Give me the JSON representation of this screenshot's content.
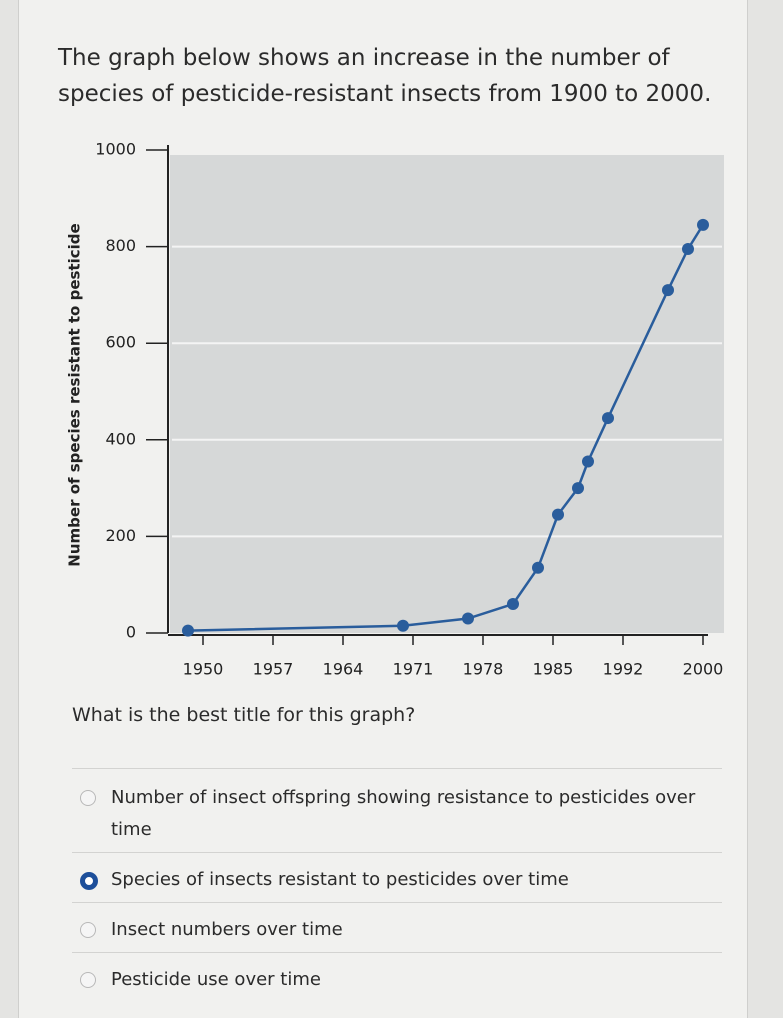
{
  "intro": "The graph below shows an increase in the number of species of pesticide-resistant insects from 1900 to 2000.",
  "chart_data": {
    "type": "line",
    "ylabel": "Number of species resistant to pesticide",
    "x": [
      1948.5,
      1970,
      1976.5,
      1981,
      1983.5,
      1985.5,
      1987.5,
      1988.5,
      1990.5,
      1996.5,
      1998.5,
      2000
    ],
    "values": [
      5,
      15,
      30,
      60,
      135,
      245,
      300,
      355,
      445,
      710,
      795,
      845
    ],
    "color": "#2a5d9c",
    "xlim": [
      1946.5,
      2000.5
    ],
    "xticks": [
      1950,
      1957,
      1964,
      1971,
      1978,
      1985,
      1992,
      2000
    ],
    "ylim": [
      0,
      1000
    ],
    "yticks": [
      0,
      200,
      400,
      600,
      800,
      1000
    ],
    "grid": true
  },
  "question": "What is the best title for this graph?",
  "options": [
    "Number of insect offspring showing resistance to pesticides over time",
    "Species of insects resistant to pesticides over time",
    "Insect numbers over time",
    "Pesticide use over time"
  ],
  "selected": 1
}
